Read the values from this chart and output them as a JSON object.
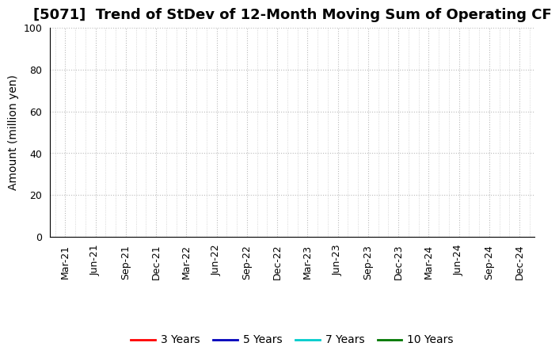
{
  "title": "[5071]  Trend of StDev of 12-Month Moving Sum of Operating CF",
  "ylabel": "Amount (million yen)",
  "ylim": [
    0,
    100
  ],
  "yticks": [
    0,
    20,
    40,
    60,
    80,
    100
  ],
  "x_tick_labels": [
    "Mar-21",
    "Jun-21",
    "Sep-21",
    "Dec-21",
    "Mar-22",
    "Jun-22",
    "Sep-22",
    "Dec-22",
    "Mar-23",
    "Jun-23",
    "Sep-23",
    "Dec-23",
    "Mar-24",
    "Jun-24",
    "Sep-24",
    "Dec-24"
  ],
  "legend_entries": [
    {
      "label": "3 Years",
      "color": "#ff0000"
    },
    {
      "label": "5 Years",
      "color": "#0000bb"
    },
    {
      "label": "7 Years",
      "color": "#00cccc"
    },
    {
      "label": "10 Years",
      "color": "#007700"
    }
  ],
  "background_color": "#ffffff",
  "grid_color": "#bbbbbb",
  "minor_grid_color": "#cccccc",
  "title_fontsize": 13,
  "axis_label_fontsize": 10,
  "tick_fontsize": 9,
  "legend_fontsize": 10
}
